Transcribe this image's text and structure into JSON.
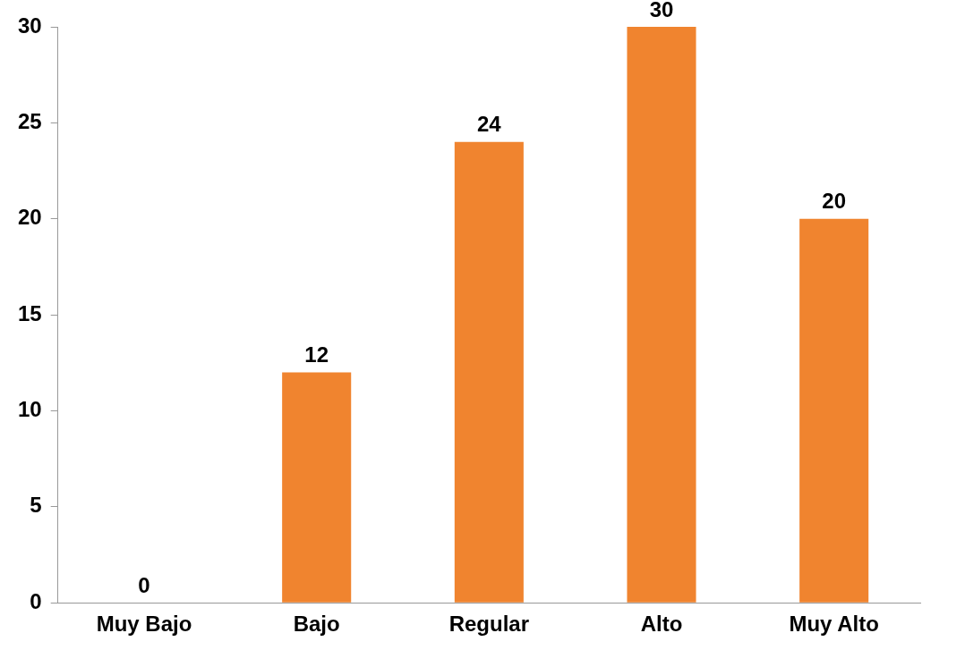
{
  "chart_data": {
    "type": "bar",
    "categories": [
      "Muy Bajo",
      "Bajo",
      "Regular",
      "Alto",
      "Muy Alto"
    ],
    "values": [
      0,
      12,
      24,
      30,
      20
    ],
    "color": "#f0842f",
    "ylim": [
      0,
      30
    ],
    "yticks": [
      0,
      5,
      10,
      15,
      20,
      25,
      30
    ],
    "grid": false,
    "legend": false,
    "data_labels": true
  }
}
